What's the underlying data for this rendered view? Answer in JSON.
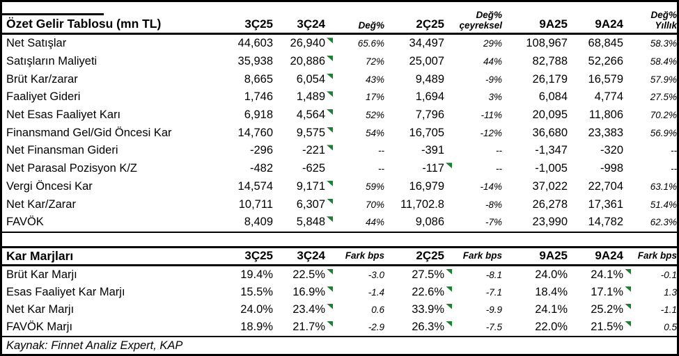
{
  "colors": {
    "triangle_green": "#1E7E34",
    "border": "#000000",
    "background": "#FFFFFF",
    "text": "#000000"
  },
  "income_table": {
    "title": "Özet Gelir Tablosu (mn TL)",
    "columns": [
      "3Ç25",
      "3Ç24",
      "Değ%",
      "2Ç25",
      "Değ%\nçeyreksel",
      "9A25",
      "9A24",
      "Değ%\nYıllık"
    ],
    "rows": [
      {
        "label": "Net Satışlar",
        "values": [
          "44,603",
          "26,940",
          "65.6%",
          "34,497",
          "29%",
          "108,967",
          "68,845",
          "58.3%"
        ],
        "markers": [
          1
        ]
      },
      {
        "label": "Satışların Maliyeti",
        "values": [
          "35,938",
          "20,886",
          "72%",
          "25,007",
          "44%",
          "82,788",
          "52,266",
          "58.4%"
        ],
        "markers": [
          1
        ]
      },
      {
        "label": "Brüt Kar/zarar",
        "values": [
          "8,665",
          "6,054",
          "43%",
          "9,489",
          "-9%",
          "26,179",
          "16,579",
          "57.9%"
        ],
        "markers": [
          1
        ]
      },
      {
        "label": "Faaliyet Gideri",
        "values": [
          "1,746",
          "1,489",
          "17%",
          "1,694",
          "3%",
          "6,084",
          "4,774",
          "27.5%"
        ],
        "markers": [
          1
        ]
      },
      {
        "label": "Net Esas Faaliyet Karı",
        "values": [
          "6,918",
          "4,564",
          "52%",
          "7,796",
          "-11%",
          "20,095",
          "11,806",
          "70.2%"
        ],
        "markers": [
          1
        ]
      },
      {
        "label": "Finansmand Gel/Gid Öncesi Kar",
        "values": [
          "14,760",
          "9,575",
          "54%",
          "16,705",
          "-12%",
          "36,680",
          "23,383",
          "56.9%"
        ],
        "markers": [
          1
        ]
      },
      {
        "label": "Net Finansman Gideri",
        "values": [
          "-296",
          "-221",
          "--",
          "-391",
          "--",
          "-1,347",
          "-320",
          "--"
        ],
        "markers": [
          1
        ]
      },
      {
        "label": "Net Parasal Pozisyon K/Z",
        "values": [
          "-482",
          "-625",
          "--",
          "-117",
          "--",
          "-1,005",
          "-998",
          "--"
        ],
        "markers": [
          3
        ]
      },
      {
        "label": "Vergi Öncesi Kar",
        "values": [
          "14,574",
          "9,171",
          "59%",
          "16,979",
          "-14%",
          "37,022",
          "22,704",
          "63.1%"
        ],
        "markers": [
          1
        ]
      },
      {
        "label": "Net Kar/Zarar",
        "values": [
          "10,711",
          "6,307",
          "70%",
          "11,702.8",
          "-8%",
          "26,278",
          "17,361",
          "51.4%"
        ],
        "markers": [
          1
        ]
      },
      {
        "label": "FAVÖK",
        "values": [
          "8,409",
          "5,848",
          "44%",
          "9,086",
          "-7%",
          "23,990",
          "14,782",
          "62.3%"
        ],
        "markers": [
          1
        ]
      }
    ]
  },
  "margins_table": {
    "title": "Kar Marjları",
    "columns": [
      "3Ç25",
      "3Ç24",
      "Fark bps",
      "2Ç25",
      "Fark bps",
      "9A25",
      "9A24",
      "Fark bps"
    ],
    "rows": [
      {
        "label": "Brüt Kar Marjı",
        "values": [
          "19.4%",
          "22.5%",
          "-3.0",
          "27.5%",
          "-8.1",
          "24.0%",
          "24.1%",
          "-0.1"
        ],
        "markers": [
          1,
          3,
          6
        ]
      },
      {
        "label": "Esas Faaliyet Kar Marjı",
        "values": [
          "15.5%",
          "16.9%",
          "-1.4",
          "22.6%",
          "-7.1",
          "18.4%",
          "17.1%",
          "1.3"
        ],
        "markers": [
          1,
          3,
          6
        ]
      },
      {
        "label": "Net Kar Marjı",
        "values": [
          "24.0%",
          "23.4%",
          "0.6",
          "33.9%",
          "-9.9",
          "24.1%",
          "25.2%",
          "-1.1"
        ],
        "markers": [
          1,
          3,
          6
        ]
      },
      {
        "label": "FAVÖK Marjı",
        "values": [
          "18.9%",
          "21.7%",
          "-2.9",
          "26.3%",
          "-7.5",
          "22.0%",
          "21.5%",
          "0.5"
        ],
        "markers": [
          1,
          3,
          6
        ]
      }
    ]
  },
  "footer": {
    "source_note": "Kaynak: Finnet Analiz Expert, KAP"
  }
}
